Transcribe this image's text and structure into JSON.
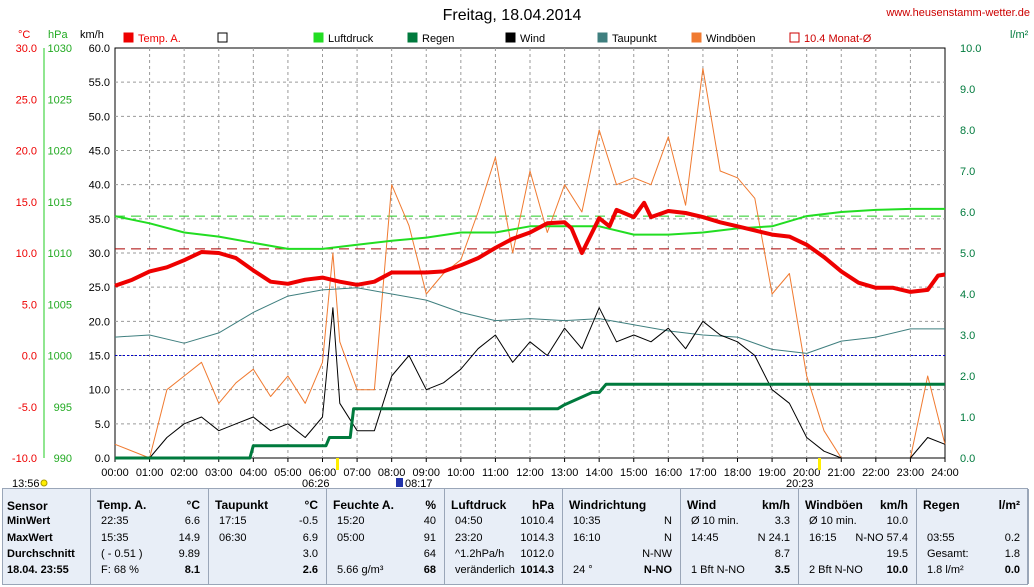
{
  "title": "Freitag, 18.04.2014",
  "site": "www.heusenstamm-wetter.de",
  "units": {
    "temp": "°C",
    "press": "hPa",
    "wind": "km/h",
    "rain": "l/m²"
  },
  "legend": [
    {
      "label": "Temp. A.",
      "color": "#ee0000",
      "filled": true
    },
    {
      "label": "",
      "color": "#000000",
      "filled": false
    },
    {
      "label": "Luftdruck",
      "color": "#22dd22",
      "filled": true
    },
    {
      "label": "Regen",
      "color": "#007a3d",
      "filled": true
    },
    {
      "label": "Wind",
      "color": "#000000",
      "filled": true
    },
    {
      "label": "Taupunkt",
      "color": "#3f7f7f",
      "filled": true
    },
    {
      "label": "Windböen",
      "color": "#f07a30",
      "filled": true
    },
    {
      "label": "10.4 Monat-Ø",
      "color": "#cc0000",
      "filled": false
    }
  ],
  "markers": {
    "start": "13:56",
    "sunrise": "06:26",
    "point": "08:17",
    "sunset": "20:23"
  },
  "chart_data": {
    "type": "line",
    "x_ticks": [
      "00:00",
      "01:00",
      "02:00",
      "03:00",
      "04:00",
      "05:00",
      "06:00",
      "07:00",
      "08:00",
      "09:00",
      "10:00",
      "11:00",
      "12:00",
      "13:00",
      "14:00",
      "15:00",
      "16:00",
      "17:00",
      "18:00",
      "19:00",
      "20:00",
      "21:00",
      "22:00",
      "23:00",
      "24:00"
    ],
    "axes": {
      "temp": {
        "ticks": [
          "30.0",
          "25.0",
          "20.0",
          "15.0",
          "10.0",
          "5.0",
          "0.0",
          "-5.0",
          "-10.0"
        ],
        "ylim": [
          -10,
          30
        ]
      },
      "press": {
        "ticks": [
          "1030",
          "1025",
          "1020",
          "1015",
          "1010",
          "1005",
          "1000",
          "995",
          "990"
        ],
        "ylim": [
          990,
          1030
        ]
      },
      "wind": {
        "ticks": [
          "60.0",
          "55.0",
          "50.0",
          "45.0",
          "40.0",
          "35.0",
          "30.0",
          "25.0",
          "20.0",
          "15.0",
          "10.0",
          "5.0",
          "0.0"
        ],
        "ylim": [
          0,
          60
        ]
      },
      "rain": {
        "ticks": [
          "10.0",
          "9.0",
          "8.0",
          "7.0",
          "6.0",
          "5.0",
          "4.0",
          "3.0",
          "2.0",
          "1.0",
          "0.0"
        ],
        "ylim": [
          0,
          10
        ]
      }
    },
    "reference_lines": {
      "monthly_avg_temp": 10.4,
      "freezing": 0.0,
      "avg_pressure_level": 1012.0
    },
    "series": [
      {
        "name": "Temp. A.",
        "axis": "temp",
        "x": [
          0,
          0.5,
          1,
          1.5,
          2,
          2.5,
          3,
          3.5,
          4,
          4.5,
          5,
          5.5,
          6,
          6.5,
          7,
          7.5,
          8,
          8.5,
          9,
          9.5,
          10,
          10.5,
          11,
          11.5,
          12,
          12.5,
          13,
          13.2,
          13.5,
          14,
          14.3,
          14.5,
          15,
          15.3,
          15.5,
          16,
          16.5,
          17,
          17.5,
          18,
          18.5,
          19,
          19.5,
          20,
          20.5,
          21,
          21.5,
          22,
          22.5,
          23,
          23.5,
          23.8,
          24
        ],
        "values": [
          6.8,
          7.4,
          8.2,
          8.6,
          9.3,
          10.1,
          10.0,
          9.5,
          8.3,
          7.2,
          7.0,
          7.4,
          7.6,
          7.2,
          6.9,
          7.2,
          8.1,
          8.1,
          8.1,
          8.2,
          8.8,
          9.5,
          10.5,
          11.4,
          12.0,
          12.9,
          13.0,
          12.4,
          10.0,
          13.4,
          12.6,
          14.2,
          13.5,
          14.9,
          13.5,
          14.1,
          13.9,
          13.5,
          13.0,
          12.6,
          12.2,
          11.8,
          11.6,
          10.8,
          9.6,
          8.2,
          7.1,
          6.6,
          6.6,
          6.2,
          6.4,
          7.8,
          7.9
        ]
      },
      {
        "name": "Luftdruck",
        "axis": "press",
        "x": [
          0,
          1,
          2,
          3,
          4,
          5,
          6,
          7,
          8,
          9,
          10,
          11,
          12,
          13,
          14,
          15,
          16,
          17,
          18,
          19,
          20,
          21,
          22,
          23,
          24
        ],
        "values": [
          1013.6,
          1012.9,
          1012.0,
          1011.6,
          1011.0,
          1010.4,
          1010.4,
          1010.8,
          1011.2,
          1011.5,
          1012.0,
          1012.0,
          1012.6,
          1012.6,
          1012.6,
          1011.8,
          1011.8,
          1012.0,
          1012.4,
          1012.6,
          1013.6,
          1014.0,
          1014.2,
          1014.3,
          1014.3
        ]
      },
      {
        "name": "Taupunkt",
        "axis": "temp",
        "x": [
          0,
          1,
          2,
          3,
          4,
          5,
          6,
          7,
          8,
          9,
          10,
          11,
          12,
          13,
          14,
          15,
          16,
          17,
          18,
          19,
          20,
          21,
          22,
          23,
          24
        ],
        "values": [
          1.8,
          2.0,
          1.2,
          2.2,
          4.2,
          5.8,
          6.4,
          6.6,
          6.0,
          5.4,
          4.2,
          3.4,
          3.6,
          3.4,
          3.6,
          3.0,
          2.4,
          2.0,
          1.8,
          0.6,
          0.2,
          1.4,
          1.8,
          2.6,
          2.6
        ]
      },
      {
        "name": "Regen",
        "axis": "rain",
        "x": [
          0,
          3.9,
          4.0,
          6.1,
          6.2,
          6.8,
          6.9,
          12.8,
          13.0,
          13.8,
          14.0,
          14.2,
          14.3,
          24
        ],
        "values": [
          0,
          0,
          0.3,
          0.3,
          0.5,
          0.5,
          1.2,
          1.2,
          1.3,
          1.6,
          1.6,
          1.8,
          1.8,
          1.8
        ]
      },
      {
        "name": "Wind",
        "axis": "wind",
        "x": [
          0,
          1,
          1.5,
          2,
          2.5,
          3,
          3.5,
          4,
          4.5,
          5,
          5.5,
          6,
          6.3,
          6.5,
          7,
          7.5,
          8,
          8.5,
          9,
          9.5,
          10,
          10.5,
          11,
          11.5,
          12,
          12.5,
          13,
          13.5,
          14,
          14.5,
          15,
          15.5,
          16,
          16.5,
          17,
          17.5,
          18,
          18.5,
          19,
          19.5,
          20,
          20.5,
          21,
          22,
          23,
          23.5,
          24
        ],
        "values": [
          0,
          0,
          3,
          5,
          6,
          4,
          5,
          6,
          4,
          5,
          3,
          6,
          22,
          8,
          4,
          4,
          12,
          15,
          10,
          11,
          13,
          16,
          18,
          14,
          17,
          15,
          19,
          16,
          22,
          17,
          18,
          17,
          19,
          16,
          20,
          18,
          17,
          15,
          10,
          8,
          3,
          1,
          0,
          0,
          0,
          3,
          2
        ]
      },
      {
        "name": "Windböen",
        "axis": "wind",
        "x": [
          0,
          1,
          1.5,
          2,
          2.5,
          3,
          3.5,
          4,
          4.5,
          5,
          5.5,
          6,
          6.3,
          6.5,
          7,
          7.5,
          8,
          8.5,
          9,
          9.5,
          10,
          10.5,
          11,
          11.5,
          12,
          12.5,
          13,
          13.5,
          14,
          14.5,
          15,
          15.5,
          16,
          16.5,
          17,
          17.5,
          18,
          18.5,
          19,
          19.5,
          20,
          20.5,
          21,
          22,
          23,
          23.5,
          24
        ],
        "values": [
          2,
          0,
          10,
          12,
          14,
          8,
          11,
          13,
          9,
          12,
          8,
          14,
          30,
          17,
          10,
          10,
          40,
          34,
          24,
          27,
          29,
          36,
          44,
          30,
          42,
          33,
          40,
          36,
          48,
          40,
          41,
          40,
          47,
          37,
          57,
          42,
          41,
          38,
          24,
          27,
          12,
          4,
          0,
          0,
          0,
          12,
          2
        ]
      }
    ]
  },
  "stats": {
    "labels": {
      "sensor": "Sensor",
      "min": "MinWert",
      "max": "MaxWert",
      "avg": "Durchschnitt",
      "date": "18.04. 23:55"
    },
    "temp": {
      "title": "Temp. A.",
      "unit": "°C",
      "min_time": "22:35",
      "min": "6.6",
      "max_time": "15:35",
      "max": "14.9",
      "avg_note": "( - 0.51 )",
      "avg": "9.89",
      "cur_note": "F: 68 %",
      "cur": "8.1"
    },
    "dew": {
      "title": "Taupunkt",
      "unit": "°C",
      "min_time": "17:15",
      "min": "-0.5",
      "max_time": "06:30",
      "max": "6.9",
      "avg": "3.0",
      "cur": "2.6"
    },
    "hum": {
      "title": "Feuchte A.",
      "unit": "%",
      "min_time": "15:20",
      "min": "40",
      "max_time": "05:00",
      "max": "91",
      "avg": "64",
      "cur_note": "5.66 g/m³",
      "cur": "68"
    },
    "press": {
      "title": "Luftdruck",
      "unit": "hPa",
      "min_time": "04:50",
      "min": "1010.4",
      "max_time": "23:20",
      "max": "1014.3",
      "avg_note": "^1.2hPa/h",
      "avg": "1012.0",
      "cur_note": "veränderlich",
      "cur": "1014.3"
    },
    "dir": {
      "title": "Windrichtung",
      "min_time": "10:35",
      "min": "N",
      "max_time": "16:10",
      "max": "N",
      "avg": "N-NW",
      "cur_note": "24 °",
      "cur": "N-NO"
    },
    "wind": {
      "title": "Wind",
      "unit": "km/h",
      "min_time": "Ø 10 min.",
      "min": "3.3",
      "max_time": "14:45",
      "max": "N 24.1",
      "avg": "8.7",
      "cur_note": "1 Bft N-NO",
      "cur": "3.5"
    },
    "gust": {
      "title": "Windböen",
      "unit": "km/h",
      "min_time": "Ø 10 min.",
      "min": "10.0",
      "max_time": "16:15",
      "max": "N-NO 57.4",
      "avg": "19.5",
      "cur_note": "2 Bft N-NO",
      "cur": "10.0"
    },
    "rain": {
      "title": "Regen",
      "unit": "l/m²",
      "max_time": "03:55",
      "max": "0.2",
      "avg_note": "Gesamt:",
      "avg": "1.8",
      "cur_note": "1.8 l/m²",
      "cur": "0.0"
    }
  }
}
